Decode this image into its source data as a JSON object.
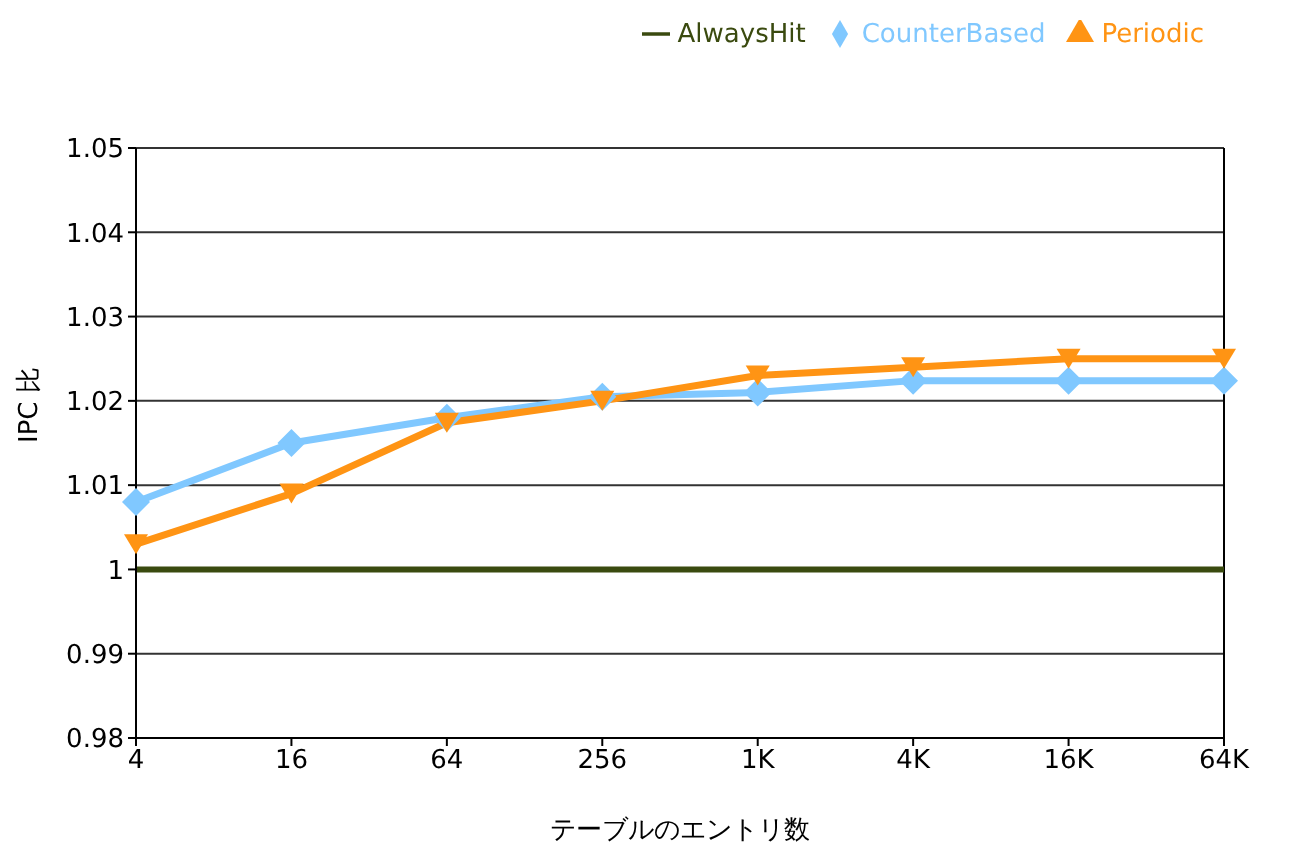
{
  "chart_data": {
    "type": "line",
    "xlabel": "テーブルのエントリ数",
    "ylabel": "IPC 比",
    "categories": [
      "4",
      "16",
      "64",
      "256",
      "1K",
      "4K",
      "16K",
      "64K"
    ],
    "series": [
      {
        "name": "AlwaysHit",
        "color": "#3a4a0f",
        "marker": "none",
        "values": [
          1,
          1,
          1,
          1,
          1,
          1,
          1,
          1
        ]
      },
      {
        "name": "CounterBased",
        "color": "#80c8ff",
        "marker": "diamond",
        "values": [
          1.008,
          1.015,
          1.018,
          1.0205,
          1.021,
          1.0224,
          1.0224,
          1.0224
        ]
      },
      {
        "name": "Periodic",
        "color": "#ff9414",
        "marker": "triangle",
        "values": [
          1.003,
          1.009,
          1.0174,
          1.02,
          1.023,
          1.024,
          1.025,
          1.025
        ]
      }
    ],
    "ylim": [
      0.98,
      1.05
    ],
    "yticks": [
      0.98,
      0.99,
      1,
      1.01,
      1.02,
      1.03,
      1.04,
      1.05
    ],
    "grid": "y",
    "legend": "top right",
    "line_style": "solid"
  }
}
